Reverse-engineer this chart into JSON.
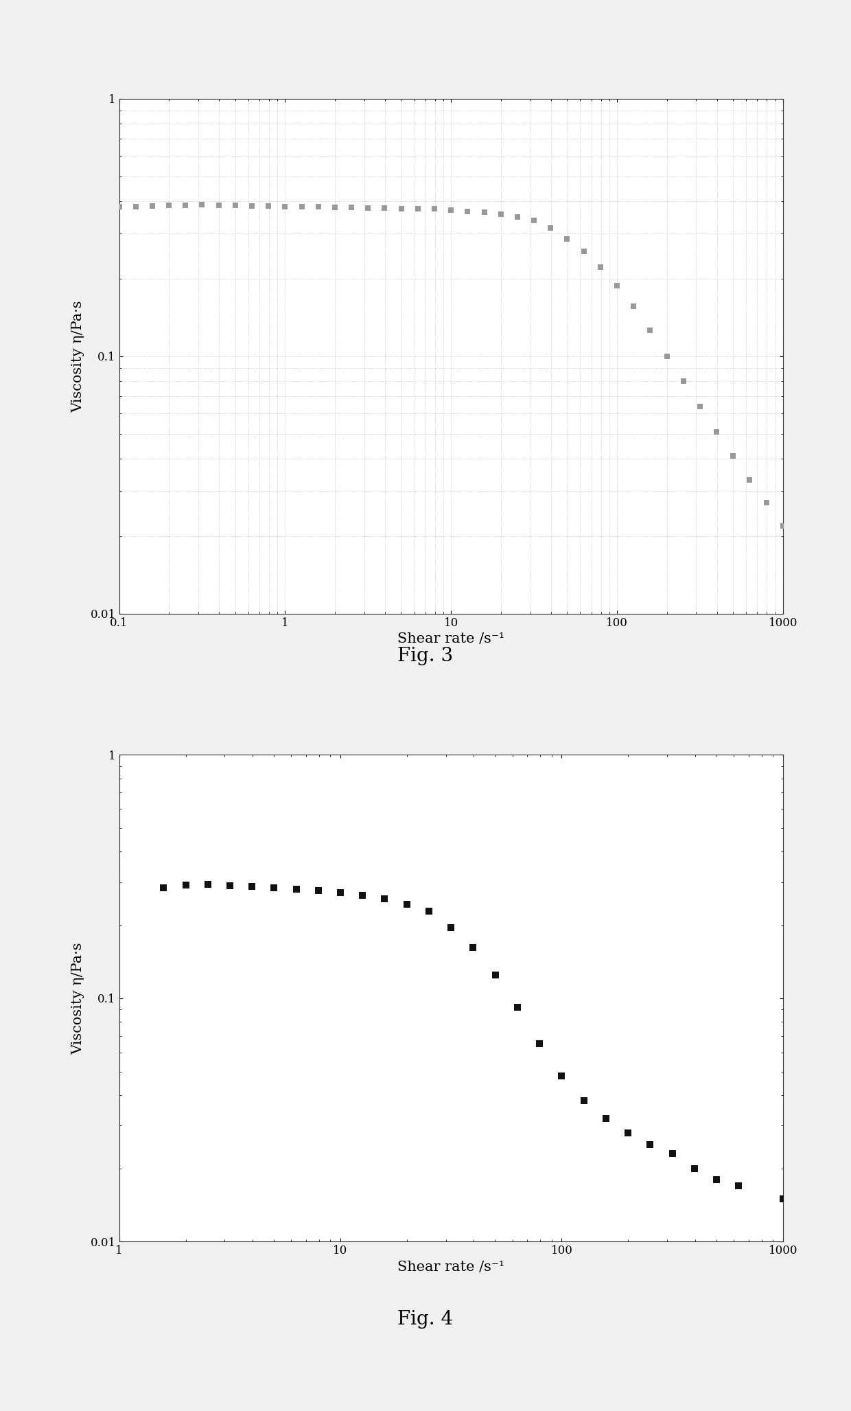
{
  "fig3": {
    "title": "Fig. 3",
    "xlabel": "Shear rate /s⁻¹",
    "ylabel": "Viscosity η/Pa·s",
    "xlim": [
      0.1,
      1000
    ],
    "ylim": [
      0.01,
      1
    ],
    "marker_color": "#999999",
    "marker_size": 40,
    "x": [
      0.1,
      0.126,
      0.158,
      0.2,
      0.251,
      0.316,
      0.398,
      0.501,
      0.631,
      0.794,
      1.0,
      1.26,
      1.585,
      2.0,
      2.512,
      3.162,
      3.981,
      5.012,
      6.31,
      7.943,
      10.0,
      12.59,
      15.85,
      19.95,
      25.12,
      31.62,
      39.81,
      50.12,
      63.1,
      79.43,
      100.0,
      125.9,
      158.5,
      199.5,
      251.2,
      316.2,
      398.1,
      501.2,
      631.0,
      794.3,
      1000.0
    ],
    "y": [
      0.38,
      0.382,
      0.384,
      0.385,
      0.386,
      0.387,
      0.386,
      0.385,
      0.384,
      0.383,
      0.382,
      0.381,
      0.38,
      0.379,
      0.378,
      0.377,
      0.376,
      0.375,
      0.374,
      0.373,
      0.37,
      0.366,
      0.362,
      0.356,
      0.348,
      0.338,
      0.315,
      0.285,
      0.255,
      0.222,
      0.188,
      0.156,
      0.126,
      0.1,
      0.08,
      0.064,
      0.051,
      0.041,
      0.033,
      0.027,
      0.022
    ]
  },
  "fig4": {
    "title": "Fig. 4",
    "xlabel": "Shear rate /s⁻¹",
    "ylabel": "Viscosity η/Pa·s",
    "xlim": [
      1,
      1000
    ],
    "ylim": [
      0.01,
      1
    ],
    "marker_color": "#111111",
    "marker_size": 55,
    "x": [
      1.585,
      2.0,
      2.512,
      3.162,
      3.981,
      5.012,
      6.31,
      7.943,
      10.0,
      12.59,
      15.85,
      19.95,
      25.12,
      31.62,
      39.81,
      50.12,
      63.1,
      79.43,
      100.0,
      125.9,
      158.5,
      199.5,
      251.2,
      316.2,
      398.1,
      501.2,
      631.0,
      1000.0
    ],
    "y": [
      0.285,
      0.292,
      0.293,
      0.29,
      0.288,
      0.285,
      0.28,
      0.278,
      0.272,
      0.265,
      0.256,
      0.244,
      0.228,
      0.195,
      0.162,
      0.125,
      0.092,
      0.065,
      0.048,
      0.038,
      0.032,
      0.028,
      0.025,
      0.023,
      0.02,
      0.018,
      0.017,
      0.015
    ]
  },
  "background_color": "#ffffff",
  "fig_label_fontsize": 20,
  "axis_label_fontsize": 15,
  "tick_fontsize": 12
}
